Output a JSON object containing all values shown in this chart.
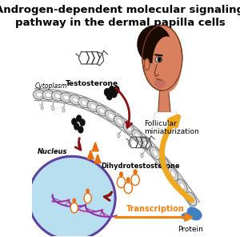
{
  "title": "Androgen-dependent molecular signaling\npathway in the dermal papilla cells",
  "title_fontsize": 9.5,
  "title_fontweight": "bold",
  "bg_color": "#ffffff",
  "label_cytoplasm": "Cytoplasm",
  "label_nucleus": "Nucleus",
  "label_testosterone": "Testosterone",
  "label_dht": "Dihydrotestosterone",
  "label_transcription": "Transcription",
  "label_protein": "Protein",
  "label_follicular": "Follicular\nminiaturization",
  "nucleus_color": "#b8dff0",
  "nucleus_border": "#6040a0",
  "dna_pink": "#d040a0",
  "dna_purple": "#9030b0",
  "arrow_dark_red": "#8b1010",
  "arrow_orange": "#f07818",
  "arrow_gold": "#f0a820",
  "face_skin": "#d98060",
  "face_skin2": "#c87050",
  "face_hair": "#1a0a00",
  "protein_color": "#4080c0",
  "orange_tri": "#e87010",
  "orange_receptor": "#e87010",
  "transcription_color": "#f08010",
  "membrane_fill": "#e0e0e0",
  "membrane_edge": "#808080",
  "membrane_inner": "#ffffff",
  "dot_color": "#111111",
  "steroid_color": "#444444",
  "receptor_circle_color": "#e07010",
  "receptor_bg": "#ffffff"
}
